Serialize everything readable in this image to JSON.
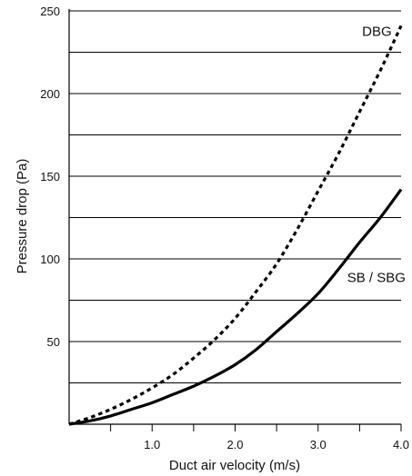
{
  "chart_data": {
    "type": "line",
    "xlabel": "Duct air velocity (m/s)",
    "ylabel": "Pressure drop (Pa)",
    "xlim": [
      0,
      4.0
    ],
    "ylim": [
      0,
      250
    ],
    "x_ticks": [
      0.5,
      1.0,
      1.5,
      2.0,
      2.5,
      3.0,
      3.5,
      4.0
    ],
    "x_tick_labels": [
      {
        "value": 1.0,
        "label": "1.0"
      },
      {
        "value": 2.0,
        "label": "2.0"
      },
      {
        "value": 3.0,
        "label": "3.0"
      },
      {
        "value": 4.0,
        "label": "4.0"
      }
    ],
    "y_gridlines": [
      25,
      50,
      75,
      100,
      125,
      150,
      175,
      200,
      225,
      250
    ],
    "y_tick_labels": [
      {
        "value": 50,
        "label": "50"
      },
      {
        "value": 100,
        "label": "100"
      },
      {
        "value": 150,
        "label": "150"
      },
      {
        "value": 200,
        "label": "200"
      },
      {
        "value": 250,
        "label": "250"
      }
    ],
    "grid": "horizontal",
    "series": [
      {
        "name": "DBG",
        "style": "dotted",
        "color": "#000000",
        "label_at": [
          3.53,
          235
        ],
        "x": [
          0.0,
          0.25,
          0.5,
          0.75,
          1.0,
          1.25,
          1.5,
          1.75,
          2.0,
          2.25,
          2.5,
          2.75,
          3.0,
          3.25,
          3.5,
          3.75,
          4.0
        ],
        "y": [
          0,
          4,
          9,
          15,
          22,
          30,
          40,
          51,
          64,
          80,
          97,
          118,
          141,
          164,
          189,
          214,
          241
        ]
      },
      {
        "name": "SB / SBG",
        "style": "solid",
        "color": "#000000",
        "label_at": [
          3.35,
          86
        ],
        "x": [
          0.0,
          0.25,
          0.5,
          0.75,
          1.0,
          1.25,
          1.5,
          1.75,
          2.0,
          2.25,
          2.5,
          2.75,
          3.0,
          3.25,
          3.5,
          3.75,
          4.0
        ],
        "y": [
          0,
          2,
          5,
          9,
          13,
          18,
          23,
          29,
          36,
          45,
          56,
          67,
          79,
          94,
          110,
          125,
          142
        ]
      }
    ]
  }
}
